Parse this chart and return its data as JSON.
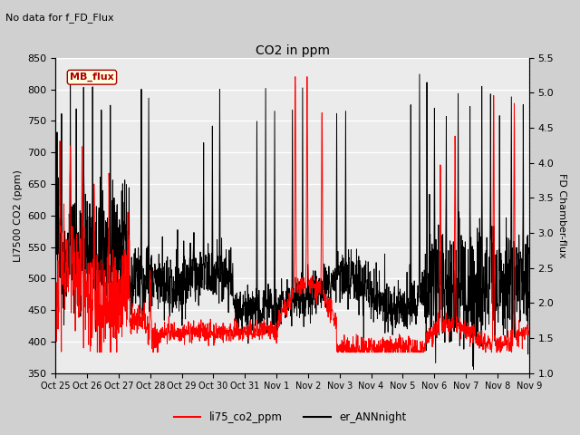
{
  "title": "CO2 in ppm",
  "subtitle": "No data for f_FD_Flux",
  "ylabel_left": "LI7500 CO2 (ppm)",
  "ylabel_right": "FD Chamber-flux",
  "ylim_left": [
    350,
    850
  ],
  "ylim_right": [
    1.0,
    5.5
  ],
  "yticks_left": [
    350,
    400,
    450,
    500,
    550,
    600,
    650,
    700,
    750,
    800,
    850
  ],
  "yticks_right": [
    1.0,
    1.5,
    2.0,
    2.5,
    3.0,
    3.5,
    4.0,
    4.5,
    5.0,
    5.5
  ],
  "xtick_labels": [
    "Oct 25",
    "Oct 26",
    "Oct 27",
    "Oct 28",
    "Oct 29",
    "Oct 30",
    "Oct 31",
    "Nov 1",
    "Nov 2",
    "Nov 3",
    "Nov 4",
    "Nov 5",
    "Nov 6",
    "Nov 7",
    "Nov 8",
    "Nov 9"
  ],
  "legend_label_red": "li75_co2_ppm",
  "legend_label_black": "er_ANNnight",
  "mb_flux_label": "MB_flux",
  "line_red_color": "#ff0000",
  "line_black_color": "#000000",
  "plot_bg_color": "#ebebeb",
  "fig_bg_color": "#d0d0d0",
  "grid_color": "#ffffff"
}
